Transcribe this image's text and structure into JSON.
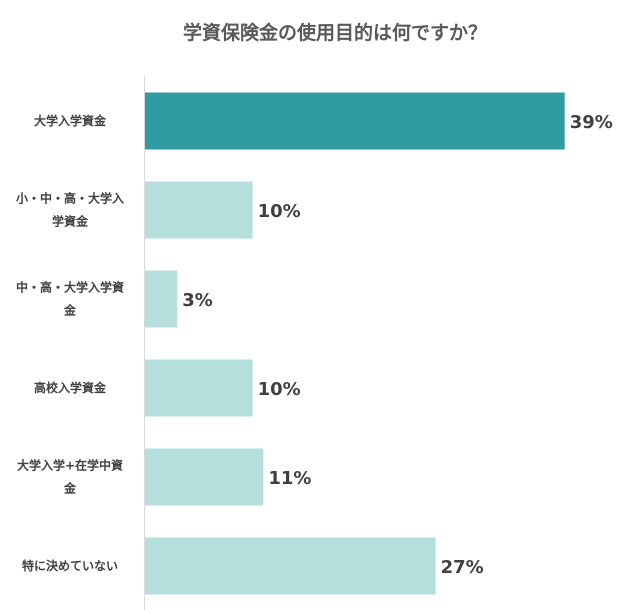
{
  "chart_data": {
    "type": "bar",
    "orientation": "horizontal",
    "title": "学資保険金の使用目的は何ですか？",
    "categories": [
      [
        "大学入学資金"
      ],
      [
        "小・中・高・大学入",
        "学資金"
      ],
      [
        "中・高・大学入学資",
        "金"
      ],
      [
        "高校入学資金"
      ],
      [
        "大学入学+在学中資",
        "金"
      ],
      [
        "特に決めていない"
      ]
    ],
    "values": [
      39,
      10,
      3,
      10,
      11,
      27
    ],
    "value_labels": [
      "39%",
      "10%",
      "3%",
      "10%",
      "11%",
      "27%"
    ],
    "unit": "%",
    "xlim": [
      0,
      42
    ],
    "grid": false,
    "legend": "none",
    "colors": {
      "highlight": "#2f9ca3",
      "bar": "#b5dfdc",
      "axis": "#d9d9d9"
    },
    "highlight_index": 0
  }
}
